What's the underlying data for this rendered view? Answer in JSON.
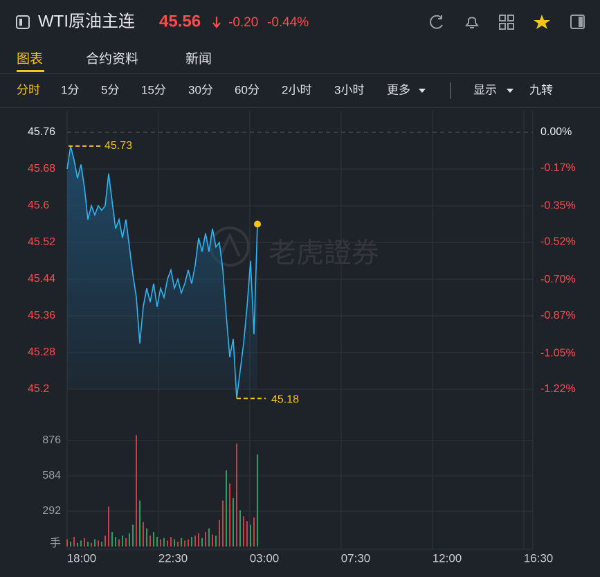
{
  "header": {
    "title": "WTI原油主连",
    "price": "45.56",
    "change": "-0.20",
    "change_percent": "-0.44%"
  },
  "tabs": [
    "图表",
    "合约资料",
    "新闻"
  ],
  "intervals": [
    "分时",
    "1分",
    "5分",
    "15分",
    "30分",
    "60分",
    "2小时",
    "3小时"
  ],
  "menus": [
    "更多",
    "显示"
  ],
  "extra": "九转",
  "chart_data": {
    "type": "line",
    "color": "#29b6f6",
    "grid": true,
    "values": [
      45.68,
      45.73,
      45.7,
      45.66,
      45.69,
      45.64,
      45.57,
      45.6,
      45.58,
      45.6,
      45.59,
      45.6,
      45.67,
      45.61,
      45.55,
      45.57,
      45.53,
      45.57,
      45.51,
      45.45,
      45.4,
      45.3,
      45.38,
      45.42,
      45.39,
      45.43,
      45.38,
      45.42,
      45.4,
      45.44,
      45.46,
      45.42,
      45.44,
      45.41,
      45.43,
      45.46,
      45.43,
      45.47,
      45.53,
      45.5,
      45.54,
      45.5,
      45.55,
      45.51,
      45.52,
      45.46,
      45.36,
      45.27,
      45.31,
      45.18,
      45.24,
      45.3,
      45.38,
      45.48,
      45.32,
      45.56
    ],
    "ylim": [
      45.2,
      45.76
    ],
    "yticks": [
      45.76,
      45.68,
      45.6,
      45.52,
      45.44,
      45.36,
      45.28,
      45.2
    ],
    "y2lim": [
      0,
      -1.22
    ],
    "y2ticks": [
      {
        "value": 0,
        "label": "0.00%"
      },
      {
        "value": -0.17,
        "label": "-0.17%"
      },
      {
        "value": -0.35,
        "label": "-0.35%"
      },
      {
        "value": -0.52,
        "label": "-0.52%"
      },
      {
        "value": -0.7,
        "label": "-0.70%"
      },
      {
        "value": -0.87,
        "label": "-0.87%"
      },
      {
        "value": -1.05,
        "label": "-1.05%"
      },
      {
        "value": -1.22,
        "label": "-1.22%"
      }
    ],
    "x_labels": [
      "18:00",
      "22:30",
      "03:00",
      "07:30",
      "12:00",
      "16:30"
    ],
    "max_label": 45.73,
    "min_label": 45.18,
    "watermark": "老虎證券",
    "volume": {
      "unit": "手",
      "ylim": [
        0,
        876
      ],
      "yticks": [
        292,
        584,
        876
      ],
      "up_color": "#e5484d",
      "down_color": "#2fb36b",
      "values": [
        60,
        40,
        80,
        30,
        50,
        70,
        40,
        30,
        60,
        50,
        40,
        90,
        330,
        120,
        80,
        60,
        90,
        70,
        110,
        180,
        920,
        380,
        200,
        150,
        90,
        120,
        80,
        60,
        70,
        50,
        80,
        60,
        40,
        70,
        50,
        60,
        80,
        90,
        110,
        70,
        120,
        150,
        100,
        90,
        220,
        380,
        630,
        520,
        400,
        850,
        300,
        250,
        210,
        180,
        240,
        760
      ],
      "rising": [
        true,
        false,
        true,
        false,
        false,
        true,
        false,
        true,
        false,
        true,
        false,
        true,
        true,
        false,
        false,
        true,
        false,
        true,
        false,
        false,
        true,
        false,
        true,
        false,
        true,
        false,
        false,
        true,
        false,
        true,
        true,
        false,
        true,
        false,
        true,
        true,
        false,
        true,
        true,
        false,
        true,
        false,
        true,
        false,
        true,
        true,
        false,
        true,
        false,
        true,
        false,
        true,
        true,
        false,
        true,
        false
      ]
    }
  }
}
